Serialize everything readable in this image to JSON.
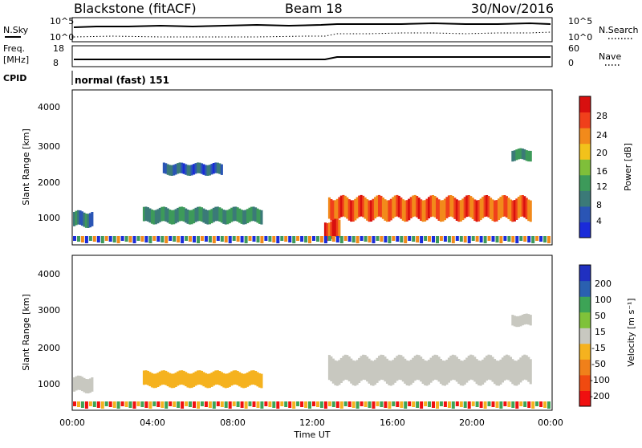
{
  "header": {
    "station": "Blackstone (fitACF)",
    "beam": "Beam 18",
    "date": "30/Nov/2016"
  },
  "top_panels": {
    "nsky_label": "N.Sky",
    "nsearch_label": "N.Search",
    "noise_ticks_left": [
      "10^5",
      "10^0"
    ],
    "noise_ticks_right": [
      "10^5",
      "10^0"
    ],
    "freq_label": "Freq.",
    "freq_unit": "[MHz]",
    "freq_ticks": [
      "18",
      "8"
    ],
    "nave_label": "Nave",
    "nave_ticks": [
      "60",
      "0"
    ],
    "cpid_label": "CPID",
    "cpid_value": "normal (fast) 151"
  },
  "x_axis": {
    "label": "Time UT",
    "ticks": [
      "00:00",
      "04:00",
      "08:00",
      "12:00",
      "16:00",
      "20:00",
      "00:00"
    ]
  },
  "colors": {
    "power_scale": [
      "#1a2bd9",
      "#2a55b5",
      "#3b7a78",
      "#3d9a5a",
      "#7fbf3a",
      "#f2c21b",
      "#f28a1b",
      "#f0401b",
      "#d8100f"
    ],
    "velocity_scale": [
      "#f01010",
      "#f04a10",
      "#f0801a",
      "#f5b21f",
      "#c8c8c0",
      "#7fc23a",
      "#3da456",
      "#2a60b0",
      "#2030c0"
    ]
  },
  "chart_data": [
    {
      "type": "heatmap",
      "title": "",
      "xlabel": "",
      "ylabel": "Slant Range [km]",
      "y_ticks": [
        "1000",
        "2000",
        "3000",
        "4000"
      ],
      "xlim": [
        "00:00",
        "24:00"
      ],
      "ylim": [
        200,
        4500
      ],
      "colorbar": {
        "label": "Power [dB]",
        "ticks": [
          "4",
          "8",
          "12",
          "16",
          "20",
          "24",
          "28"
        ],
        "range": [
          0,
          30
        ]
      },
      "regions": [
        {
          "name": "",
          "t_start": 0.0,
          "t_end": 1.0,
          "r_center": 900,
          "r_half": 200,
          "value": 8
        },
        {
          "name": "",
          "t_start": 3.5,
          "t_end": 9.5,
          "r_center": 1000,
          "r_half": 200,
          "value": 10
        },
        {
          "name": "",
          "t_start": 4.5,
          "t_end": 7.5,
          "r_center": 2300,
          "r_half": 150,
          "value": 6
        },
        {
          "name": "",
          "t_start": 12.8,
          "t_end": 23.0,
          "r_center": 1200,
          "r_half": 300,
          "value": 24
        },
        {
          "name": "",
          "t_start": 12.6,
          "t_end": 13.4,
          "r_center": 600,
          "r_half": 250,
          "value": 26
        },
        {
          "name": "",
          "t_start": 22.0,
          "t_end": 23.0,
          "r_center": 2700,
          "r_half": 150,
          "value": 10
        }
      ]
    },
    {
      "type": "heatmap",
      "title": "",
      "xlabel": "Time UT",
      "ylabel": "Slant Range [km]",
      "y_ticks": [
        "1000",
        "2000",
        "3000",
        "4000"
      ],
      "xlim": [
        "00:00",
        "24:00"
      ],
      "ylim": [
        200,
        4500
      ],
      "colorbar": {
        "label": "Velocity [m s⁻¹]",
        "ticks": [
          "200",
          "100",
          "50",
          "15",
          "-15",
          "-50",
          "-100",
          "-200"
        ],
        "range": [
          -250,
          250
        ]
      },
      "regions": [
        {
          "name": "",
          "t_start": 0.0,
          "t_end": 1.0,
          "r_center": 900,
          "r_half": 200,
          "value": 0
        },
        {
          "name": "",
          "t_start": 3.5,
          "t_end": 9.5,
          "r_center": 1050,
          "r_half": 200,
          "value": -40
        },
        {
          "name": "",
          "t_start": 12.8,
          "t_end": 23.0,
          "r_center": 1300,
          "r_half": 350,
          "value": 0
        },
        {
          "name": "",
          "t_start": 22.0,
          "t_end": 23.0,
          "r_center": 2700,
          "r_half": 150,
          "value": 0
        }
      ]
    }
  ]
}
